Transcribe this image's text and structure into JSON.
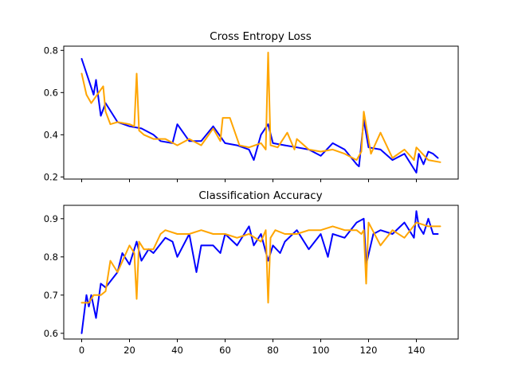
{
  "chart_data": [
    {
      "type": "line",
      "title": "Cross Entropy Loss",
      "xlabel": "",
      "ylabel": "",
      "xlim": [
        -7.5,
        157.5
      ],
      "ylim": [
        0.19,
        0.82
      ],
      "xticks": [
        0,
        20,
        40,
        60,
        80,
        100,
        120,
        140
      ],
      "yticks": [
        0.2,
        0.4,
        0.6,
        0.8
      ],
      "ytick_labels": [
        "0.2",
        "0.4",
        "0.6",
        "0.8"
      ],
      "grid": false,
      "series": [
        {
          "color": "#0000ff",
          "x": [
            0,
            5,
            6,
            8,
            10,
            15,
            20,
            25,
            30,
            33,
            38,
            40,
            45,
            50,
            55,
            60,
            65,
            70,
            72,
            75,
            78,
            80,
            85,
            90,
            95,
            100,
            105,
            110,
            115,
            116,
            118,
            120,
            125,
            130,
            135,
            140,
            141,
            143,
            145,
            147,
            149
          ],
          "y": [
            0.76,
            0.59,
            0.66,
            0.49,
            0.55,
            0.46,
            0.44,
            0.43,
            0.4,
            0.37,
            0.36,
            0.45,
            0.37,
            0.37,
            0.44,
            0.36,
            0.35,
            0.33,
            0.28,
            0.4,
            0.45,
            0.36,
            0.35,
            0.34,
            0.33,
            0.3,
            0.36,
            0.33,
            0.26,
            0.25,
            0.47,
            0.34,
            0.33,
            0.28,
            0.31,
            0.22,
            0.31,
            0.26,
            0.32,
            0.31,
            0.29
          ]
        },
        {
          "color": "#ffa500",
          "x": [
            0,
            2,
            4,
            9,
            10,
            12,
            15,
            20,
            22,
            23,
            24,
            26,
            30,
            35,
            40,
            45,
            50,
            55,
            58,
            59,
            62,
            66,
            70,
            75,
            77,
            78,
            79,
            82,
            86,
            89,
            90,
            95,
            100,
            105,
            110,
            115,
            117,
            118,
            121,
            125,
            130,
            135,
            139,
            140,
            145,
            150
          ],
          "y": [
            0.69,
            0.59,
            0.55,
            0.63,
            0.51,
            0.45,
            0.46,
            0.45,
            0.44,
            0.69,
            0.42,
            0.4,
            0.38,
            0.38,
            0.35,
            0.38,
            0.35,
            0.43,
            0.37,
            0.48,
            0.48,
            0.35,
            0.34,
            0.36,
            0.33,
            0.79,
            0.35,
            0.34,
            0.41,
            0.33,
            0.38,
            0.33,
            0.32,
            0.33,
            0.31,
            0.28,
            0.32,
            0.51,
            0.31,
            0.41,
            0.29,
            0.33,
            0.28,
            0.34,
            0.28,
            0.27
          ]
        }
      ]
    },
    {
      "type": "line",
      "title": "Classification Accuracy",
      "xlabel": "",
      "ylabel": "",
      "xlim": [
        -7.5,
        157.5
      ],
      "ylim": [
        0.585,
        0.935
      ],
      "xticks": [
        0,
        20,
        40,
        60,
        80,
        100,
        120,
        140
      ],
      "xtick_labels": [
        "0",
        "20",
        "40",
        "60",
        "80",
        "100",
        "120",
        "140"
      ],
      "yticks": [
        0.6,
        0.7,
        0.8,
        0.9
      ],
      "ytick_labels": [
        "0.6",
        "0.7",
        "0.8",
        "0.9"
      ],
      "grid": false,
      "series": [
        {
          "color": "#0000ff",
          "x": [
            0,
            2,
            3,
            4,
            6,
            8,
            10,
            15,
            17,
            20,
            23,
            25,
            28,
            30,
            35,
            38,
            40,
            45,
            48,
            50,
            55,
            58,
            60,
            65,
            70,
            72,
            75,
            78,
            80,
            83,
            85,
            90,
            95,
            100,
            103,
            105,
            110,
            115,
            118,
            119,
            122,
            125,
            130,
            135,
            139,
            140,
            141,
            143,
            145,
            147,
            149
          ],
          "y": [
            0.6,
            0.7,
            0.67,
            0.7,
            0.64,
            0.73,
            0.72,
            0.76,
            0.81,
            0.78,
            0.84,
            0.79,
            0.82,
            0.81,
            0.85,
            0.84,
            0.8,
            0.86,
            0.76,
            0.83,
            0.83,
            0.81,
            0.86,
            0.83,
            0.88,
            0.83,
            0.86,
            0.79,
            0.83,
            0.81,
            0.84,
            0.87,
            0.82,
            0.86,
            0.8,
            0.86,
            0.85,
            0.89,
            0.9,
            0.78,
            0.86,
            0.87,
            0.86,
            0.89,
            0.85,
            0.92,
            0.88,
            0.86,
            0.9,
            0.86,
            0.86
          ]
        },
        {
          "color": "#ffa500",
          "x": [
            0,
            3,
            5,
            8,
            10,
            12,
            15,
            20,
            22,
            23,
            24,
            26,
            30,
            33,
            35,
            40,
            45,
            50,
            55,
            60,
            65,
            70,
            75,
            77,
            78,
            79,
            81,
            85,
            90,
            95,
            100,
            105,
            110,
            115,
            117,
            118,
            119,
            120,
            125,
            130,
            135,
            140,
            145,
            150
          ],
          "y": [
            0.68,
            0.68,
            0.7,
            0.7,
            0.71,
            0.79,
            0.76,
            0.83,
            0.81,
            0.69,
            0.84,
            0.82,
            0.82,
            0.86,
            0.87,
            0.86,
            0.86,
            0.87,
            0.86,
            0.86,
            0.85,
            0.86,
            0.84,
            0.87,
            0.68,
            0.85,
            0.87,
            0.86,
            0.86,
            0.87,
            0.87,
            0.88,
            0.87,
            0.87,
            0.86,
            0.87,
            0.73,
            0.89,
            0.83,
            0.87,
            0.85,
            0.89,
            0.88,
            0.88
          ]
        }
      ]
    }
  ]
}
